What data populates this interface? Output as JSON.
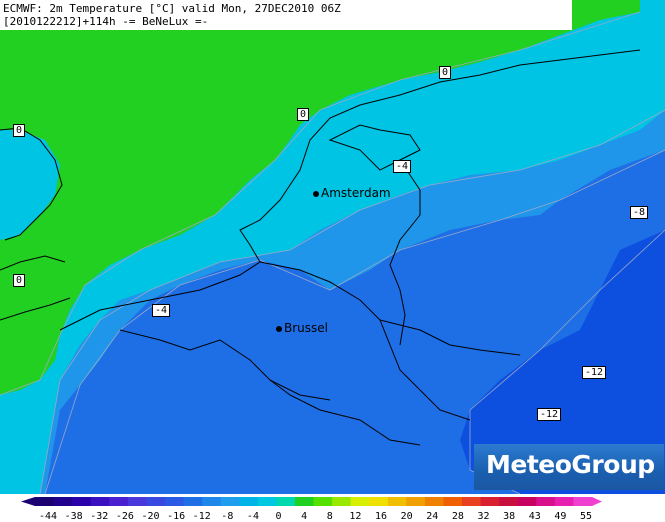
{
  "header": {
    "line1": "ECMWF: 2m Temperature [°C] valid Mon, 27DEC2010 06Z",
    "line2": "[2010122212]+114h -= BeNeLux =-"
  },
  "colors": {
    "sea_light": "#00c4e4",
    "land_green": "#22d022",
    "bright_green": "#55e000",
    "blue_mid": "#1f96ea",
    "blue_deep": "#1e6ee6",
    "blue_cold": "#0d50e0",
    "border": "#000000"
  },
  "contour_labels": [
    {
      "id": "zero-top",
      "text": "0"
    },
    {
      "id": "zero-west",
      "text": "0"
    },
    {
      "id": "zero-mid",
      "text": "0"
    },
    {
      "id": "zero-sw",
      "text": "0"
    },
    {
      "id": "minus4-nl",
      "text": "-4"
    },
    {
      "id": "minus4-be",
      "text": "-4"
    },
    {
      "id": "minus8-east",
      "text": "-8"
    },
    {
      "id": "minus12-a",
      "text": "-12"
    },
    {
      "id": "minus12-b",
      "text": "-12"
    }
  ],
  "cities": [
    {
      "name": "Amsterdam"
    },
    {
      "name": "Brussel"
    }
  ],
  "brand": {
    "name": "MeteoGroup"
  },
  "legend": {
    "ticks": [
      "-44",
      "-38",
      "-32",
      "-26",
      "-20",
      "-16",
      "-12",
      "-8",
      "-4",
      "0",
      "4",
      "8",
      "12",
      "16",
      "20",
      "24",
      "28",
      "32",
      "38",
      "43",
      "49",
      "55"
    ],
    "colors": [
      "#1a0070",
      "#22008e",
      "#2a00aa",
      "#3a10c0",
      "#4a20d0",
      "#4a38dc",
      "#3a48e2",
      "#2c58e6",
      "#1e6ee6",
      "#1f86ea",
      "#1f9eee",
      "#00b4e8",
      "#00c8e0",
      "#00d8b0",
      "#22d022",
      "#55e000",
      "#99e800",
      "#d8f000",
      "#f0e000",
      "#f0c000",
      "#f0a000",
      "#f08000",
      "#f06000",
      "#e84020",
      "#d82030",
      "#c8103e",
      "#c80060",
      "#d8108c",
      "#e820b0",
      "#f040d0"
    ]
  }
}
